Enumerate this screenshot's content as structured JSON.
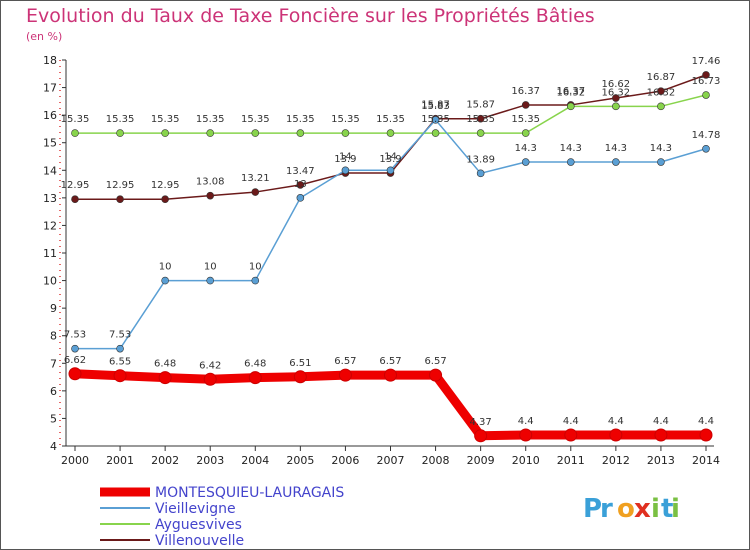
{
  "chart_data": {
    "type": "line",
    "title": "Evolution du Taux de Taxe Foncière sur les Propriétés Bâties",
    "subtitle": "(en %)",
    "xlabel": "",
    "ylabel": "",
    "ylim": [
      4,
      18
    ],
    "y_ticks": [
      4,
      5,
      6,
      7,
      8,
      9,
      10,
      11,
      12,
      13,
      14,
      15,
      16,
      17,
      18
    ],
    "x": [
      "2000",
      "2001",
      "2002",
      "2003",
      "2004",
      "2005",
      "2006",
      "2007",
      "2008",
      "2009",
      "2010",
      "2011",
      "2012",
      "2013",
      "2014"
    ],
    "grid": false,
    "legend_position": "bottom-left",
    "series": [
      {
        "name": "Villenouvelle",
        "color": "#6b1a1a",
        "values": [
          12.95,
          12.95,
          12.95,
          13.08,
          13.21,
          13.47,
          13.9,
          13.9,
          15.87,
          15.87,
          16.37,
          16.37,
          16.62,
          16.87,
          17.46
        ],
        "labels": [
          "12.95",
          "12.95",
          "12.95",
          "13.08",
          "13.21",
          "13.47",
          "13.9",
          "13.9",
          "15.87",
          "15.87",
          "16.37",
          "16.37",
          "16.62",
          "16.87",
          "17.46"
        ]
      },
      {
        "name": "Ayguesvives",
        "color": "#88d44c",
        "values": [
          15.35,
          15.35,
          15.35,
          15.35,
          15.35,
          15.35,
          15.35,
          15.35,
          15.35,
          15.35,
          15.35,
          16.32,
          16.32,
          16.32,
          16.73
        ],
        "labels": [
          "15.35",
          "15.35",
          "15.35",
          "15.35",
          "15.35",
          "15.35",
          "15.35",
          "15.35",
          "15.35",
          "15.35",
          "15.35",
          "16.32",
          "16.32",
          "16.32",
          "16.73"
        ]
      },
      {
        "name": "Vieillevigne",
        "color": "#5a9fd4",
        "values": [
          7.53,
          7.53,
          10,
          10,
          10,
          13,
          14,
          14,
          15.83,
          13.89,
          14.3,
          14.3,
          14.3,
          14.3,
          14.78
        ],
        "labels": [
          "7.53",
          "7.53",
          "10",
          "10",
          "10",
          "13",
          "14",
          "14",
          "15.83",
          "13.89",
          "14.3",
          "14.3",
          "14.3",
          "14.3",
          "14.78"
        ]
      },
      {
        "name": "MONTESQUIEU-LAURAGAIS",
        "color": "#ee0000",
        "values": [
          6.62,
          6.55,
          6.48,
          6.42,
          6.48,
          6.51,
          6.57,
          6.57,
          6.57,
          4.37,
          4.4,
          4.4,
          4.4,
          4.4,
          4.4
        ],
        "labels": [
          "6.62",
          "6.55",
          "6.48",
          "6.42",
          "6.48",
          "6.51",
          "6.57",
          "6.57",
          "6.57",
          "4.37",
          "4.4",
          "4.4",
          "4.4",
          "4.4",
          "4.4"
        ]
      }
    ],
    "legend": [
      "MONTESQUIEU-LAURAGAIS",
      "Vieillevigne",
      "Ayguesvives",
      "Villenouvelle"
    ]
  },
  "branding": {
    "logo_text": "Proxiti",
    "logo_colors": [
      "#3aa0d8",
      "#f0a020",
      "#e03020",
      "#7ac043"
    ]
  }
}
